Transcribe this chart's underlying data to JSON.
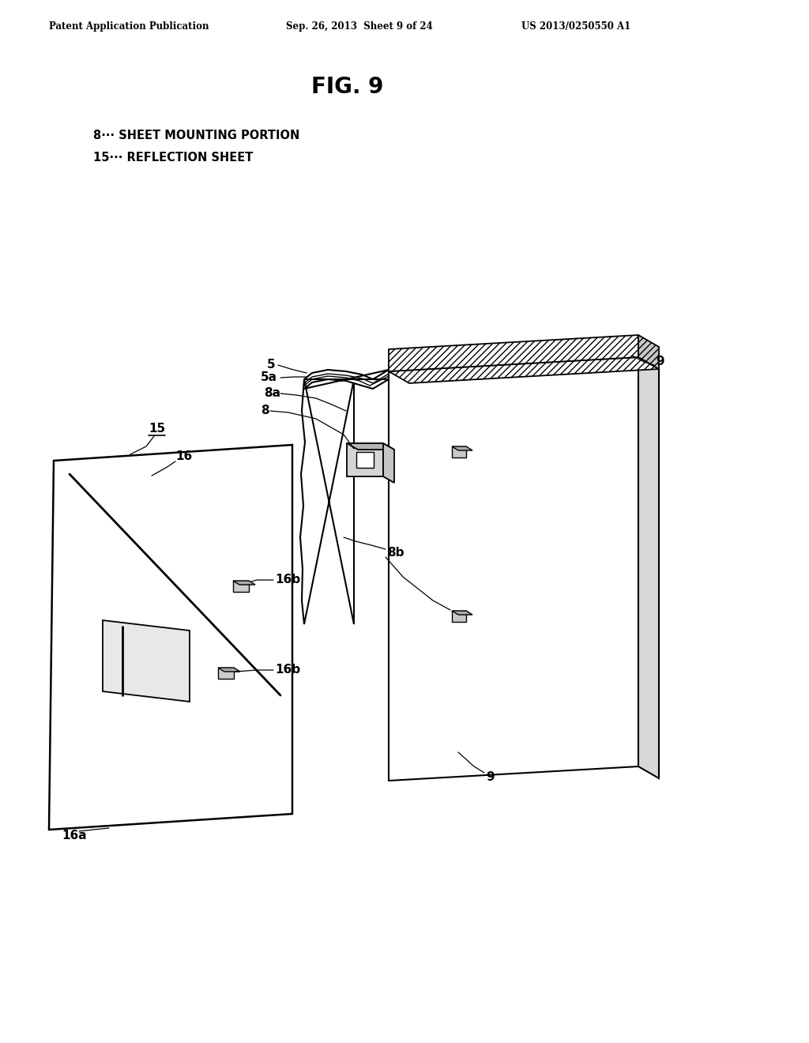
{
  "header_left": "Patent Application Publication",
  "header_mid": "Sep. 26, 2013  Sheet 9 of 24",
  "header_right": "US 2013/0250550 A1",
  "title": "FIG. 9",
  "legend_1": "8··· SHEET MOUNTING PORTION",
  "legend_2": "15··· REFLECTION SHEET",
  "bg_color": "#ffffff"
}
